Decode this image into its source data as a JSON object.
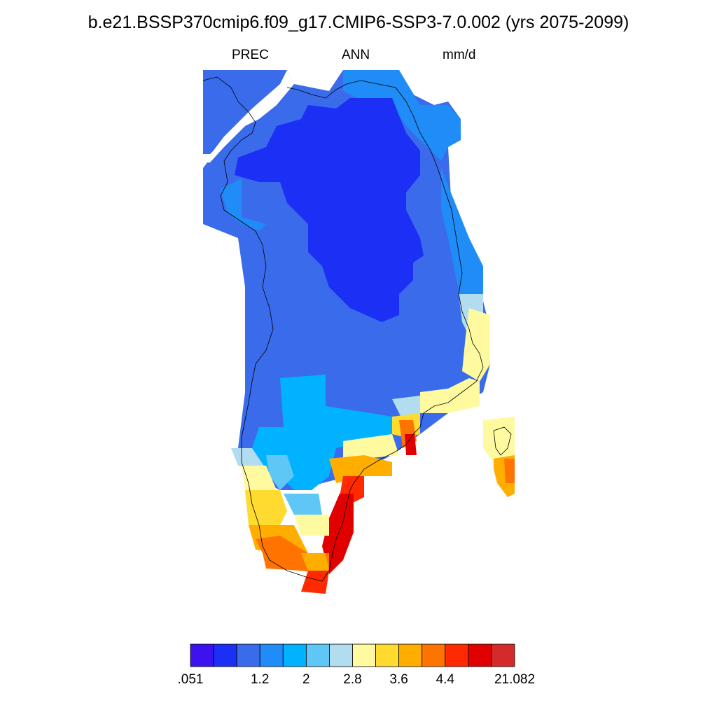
{
  "header": {
    "title": "b.e21.BSSP370cmip6.f09_g17.CMIP6-SSP3-7.0.002 (yrs 2075-2099)",
    "variable": "PREC",
    "season": "ANN",
    "units": "mm/d"
  },
  "colorbar": {
    "colors": [
      "#3c12f0",
      "#1b2ff5",
      "#3a6bea",
      "#1f8cf7",
      "#00b2ff",
      "#5fc7f5",
      "#b2dcf0",
      "#fffaa0",
      "#ffda2f",
      "#ffae00",
      "#ff7300",
      "#ff2a00",
      "#e10000",
      "#d42a2a"
    ],
    "labels": [
      {
        "text": ".051",
        "index": 0
      },
      {
        "text": "1.2",
        "index": 3
      },
      {
        "text": "2",
        "index": 5
      },
      {
        "text": "2.8",
        "index": 7
      },
      {
        "text": "3.6",
        "index": 9
      },
      {
        "text": "4.4",
        "index": 11
      },
      {
        "text": "21.082",
        "index": 14
      }
    ]
  },
  "map": {
    "region_colors": {
      "darkest": "#1b2ff5",
      "dark": "#3a6bea",
      "mid": "#1f8cf7",
      "light": "#00b2ff",
      "lighter": "#5fc7f5",
      "pale": "#b2dcf0",
      "cream": "#fffaa0",
      "yellow": "#ffda2f",
      "orange": "#ffae00",
      "deep_orange": "#ff7300",
      "red": "#ff2a00",
      "dark_red": "#e10000"
    }
  }
}
